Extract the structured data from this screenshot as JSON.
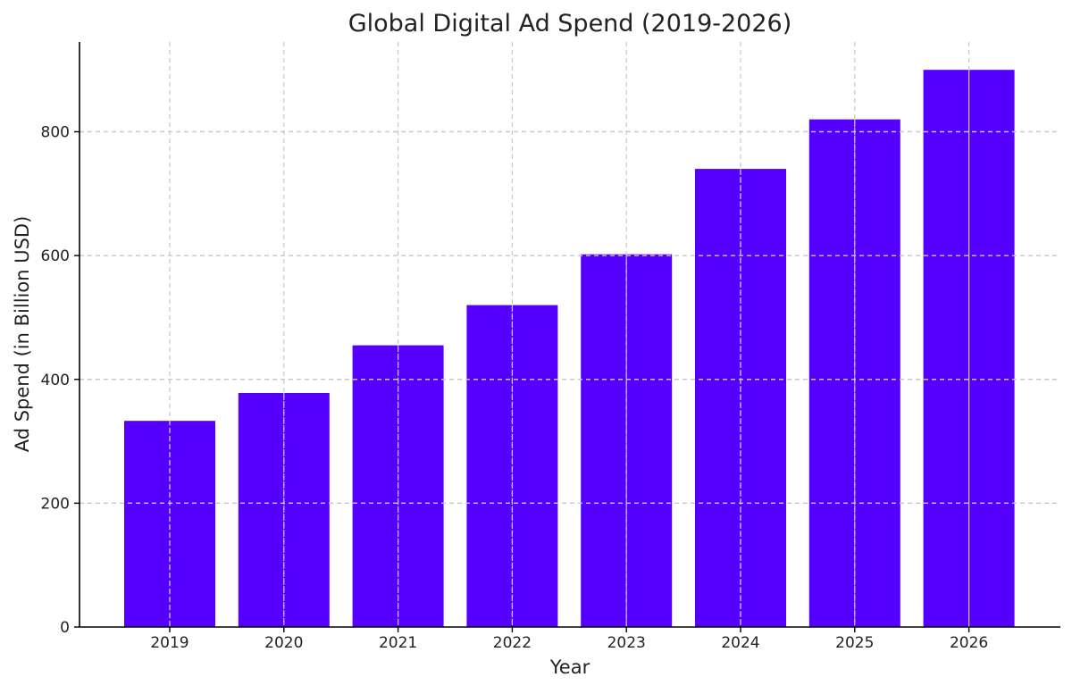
{
  "chart_data": {
    "type": "bar",
    "title": "Global Digital Ad Spend (2019-2026)",
    "xlabel": "Year",
    "ylabel": "Ad Spend (in Billion USD)",
    "categories": [
      "2019",
      "2020",
      "2021",
      "2022",
      "2023",
      "2024",
      "2025",
      "2026"
    ],
    "values": [
      333,
      378,
      455,
      520,
      602,
      740,
      820,
      900
    ],
    "ylim": [
      0,
      945
    ],
    "yticks": [
      0,
      200,
      400,
      600,
      800
    ],
    "grid": true,
    "bar_color": "#5500ff"
  }
}
